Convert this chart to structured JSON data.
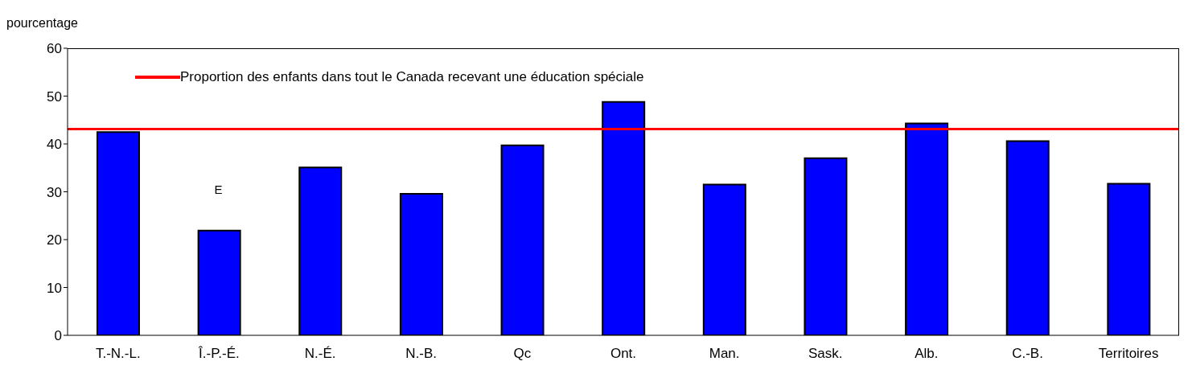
{
  "chart_data": {
    "type": "bar",
    "ylabel": "pourcentage",
    "categories": [
      "T.-N.-L.",
      "Î.-P.-É.",
      "N.-É.",
      "N.-B.",
      "Qc",
      "Ont.",
      "Man.",
      "Sask.",
      "Alb.",
      "C.-B.",
      "Territoires"
    ],
    "values": [
      42.5,
      21.9,
      35.1,
      29.6,
      39.7,
      48.8,
      31.5,
      37.0,
      44.3,
      40.6,
      31.7
    ],
    "color": "#0000ff",
    "ylim": [
      0,
      60
    ],
    "yticks": [
      0,
      10,
      20,
      30,
      40,
      50,
      60
    ],
    "ref_lines": [
      {
        "axis": "y",
        "value": 43.1,
        "label": "Proportion des enfants dans tout le Canada recevant une éducation spéciale",
        "color": "#ff0000"
      }
    ],
    "annotations": [
      "E"
    ],
    "legend": "top left",
    "grid": false
  }
}
